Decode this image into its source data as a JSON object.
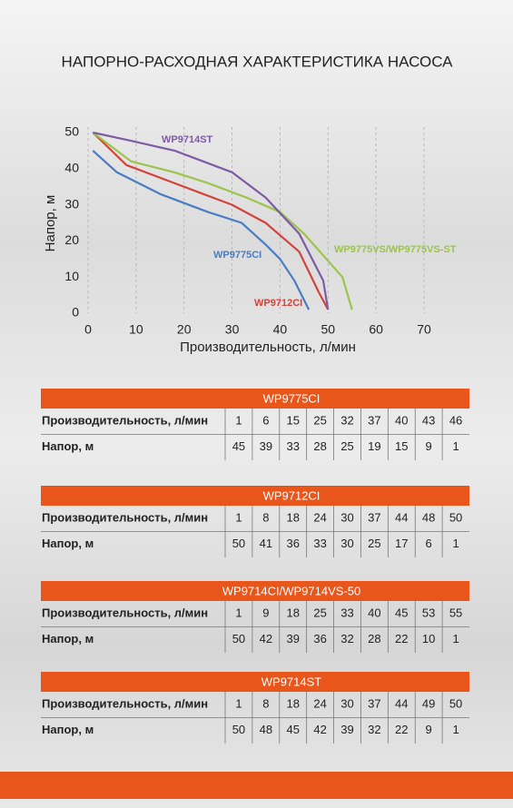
{
  "chart_data": {
    "type": "line",
    "title": "НАПОРНО-РАСХОДНАЯ ХАРАКТЕРИСТИКА НАСОСА",
    "xlabel": "Производительность, л/мин",
    "ylabel": "Напор, м",
    "xlim": [
      0,
      70
    ],
    "ylim": [
      0,
      50
    ],
    "xticks": [
      0,
      10,
      20,
      30,
      40,
      50,
      60,
      70
    ],
    "yticks": [
      0,
      10,
      20,
      30,
      40,
      50
    ],
    "grid": true,
    "series": [
      {
        "name": "WP9775CI",
        "color": "#4a7cc2",
        "x": [
          1,
          6,
          15,
          25,
          32,
          37,
          40,
          43,
          46
        ],
        "values": [
          45,
          39,
          33,
          28,
          25,
          19,
          15,
          9,
          1
        ]
      },
      {
        "name": "WP9712CI",
        "color": "#d2433b",
        "x": [
          1,
          8,
          18,
          24,
          30,
          37,
          44,
          48,
          50
        ],
        "values": [
          50,
          41,
          36,
          33,
          30,
          25,
          17,
          6,
          1
        ]
      },
      {
        "name": "WP9775VS/WP9775VS-ST",
        "color": "#9cc34a",
        "x": [
          1,
          9,
          18,
          25,
          33,
          40,
          45,
          53,
          55
        ],
        "values": [
          50,
          42,
          39,
          36,
          32,
          28,
          22,
          10,
          1
        ]
      },
      {
        "name": "WP9714ST",
        "color": "#7d5ba3",
        "x": [
          1,
          8,
          18,
          24,
          30,
          37,
          44,
          49,
          50
        ],
        "values": [
          50,
          48,
          45,
          42,
          39,
          32,
          22,
          9,
          1
        ]
      }
    ]
  },
  "tables": [
    {
      "title": "WP9775CI",
      "rows": [
        [
          "Производительность, л/мин",
          1,
          6,
          15,
          25,
          32,
          37,
          40,
          43,
          46
        ],
        [
          "Напор, м",
          45,
          39,
          33,
          28,
          25,
          19,
          15,
          9,
          1
        ]
      ]
    },
    {
      "title": "WP9712CI",
      "rows": [
        [
          "Производительность, л/мин",
          1,
          8,
          18,
          24,
          30,
          37,
          44,
          48,
          50
        ],
        [
          "Напор, м",
          50,
          41,
          36,
          33,
          30,
          25,
          17,
          6,
          1
        ]
      ]
    },
    {
      "title": "WP9714CI/WP9714VS-50",
      "rows": [
        [
          "Производительность, л/мин",
          1,
          9,
          18,
          25,
          33,
          40,
          45,
          53,
          55
        ],
        [
          "Напор, м",
          50,
          42,
          39,
          36,
          32,
          28,
          22,
          10,
          1
        ]
      ]
    },
    {
      "title": "WP9714ST",
      "rows": [
        [
          "Производительность, л/мин",
          1,
          8,
          18,
          24,
          30,
          37,
          44,
          49,
          50
        ],
        [
          "Напор, м",
          50,
          48,
          45,
          42,
          39,
          32,
          22,
          9,
          1
        ]
      ]
    }
  ]
}
